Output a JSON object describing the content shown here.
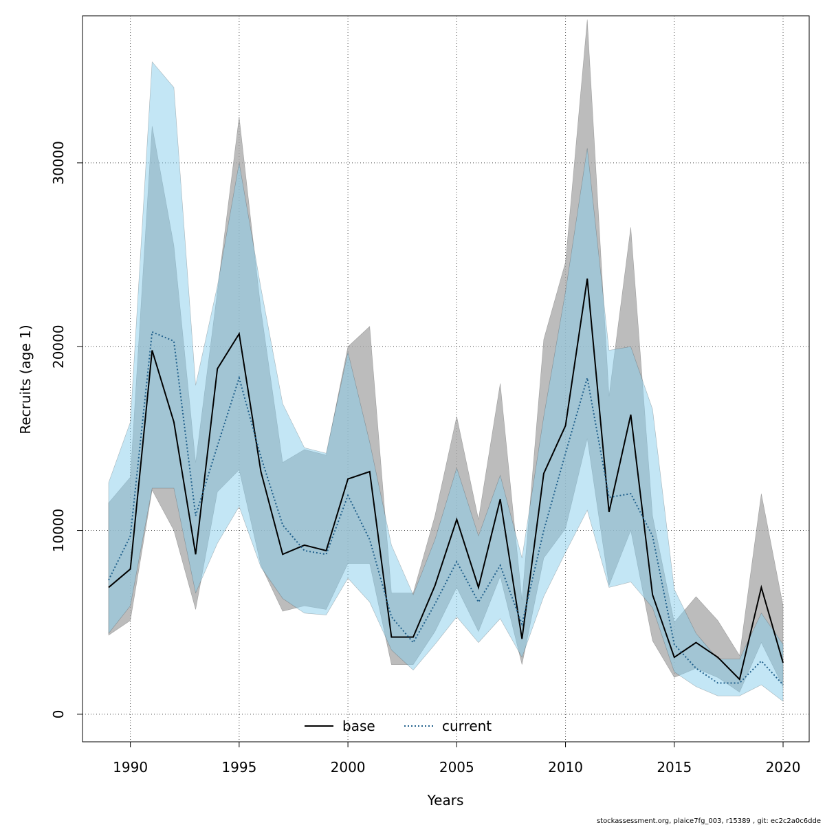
{
  "chart_data": {
    "type": "line",
    "xlabel": "Years",
    "ylabel": "Recruits (age 1)",
    "xlim": [
      1987.8,
      2021.2
    ],
    "ylim": [
      -1500,
      38000
    ],
    "x_ticks": [
      1990,
      1995,
      2000,
      2005,
      2010,
      2015,
      2020
    ],
    "y_ticks": [
      0,
      10000,
      20000,
      30000
    ],
    "grid": true,
    "legend_position": "bottom-center",
    "x": [
      1989,
      1990,
      1991,
      1992,
      1993,
      1994,
      1995,
      1996,
      1997,
      1998,
      1999,
      2000,
      2001,
      2002,
      2003,
      2004,
      2005,
      2006,
      2007,
      2008,
      2009,
      2010,
      2011,
      2012,
      2013,
      2014,
      2015,
      2016,
      2017,
      2018,
      2019,
      2020
    ],
    "series": [
      {
        "name": "base",
        "color": "#000000",
        "band_color": "#a6a6a6",
        "line_style": "solid",
        "values": [
          6900,
          7900,
          19800,
          15900,
          8700,
          18800,
          20700,
          13200,
          8700,
          9200,
          8900,
          12800,
          13200,
          4200,
          4200,
          7000,
          10600,
          6900,
          11700,
          4100,
          13100,
          15700,
          23700,
          11000,
          16300,
          6500,
          3100,
          3900,
          3100,
          1900,
          6900,
          2800
        ],
        "lower": [
          4300,
          5100,
          12200,
          10000,
          5700,
          12100,
          13300,
          8100,
          5600,
          5900,
          5700,
          8200,
          8200,
          2700,
          2700,
          4500,
          6900,
          4500,
          7500,
          2700,
          8500,
          10100,
          15000,
          7000,
          10000,
          4000,
          2000,
          2500,
          2000,
          1200,
          3900,
          1500
        ],
        "upper": [
          11500,
          12900,
          32000,
          25500,
          13700,
          23000,
          32500,
          22000,
          13700,
          14400,
          14100,
          20000,
          21100,
          6600,
          6600,
          10800,
          16200,
          10600,
          18000,
          6200,
          20400,
          24600,
          37800,
          17300,
          26500,
          10800,
          5000,
          6400,
          5100,
          3200,
          12000,
          5900
        ]
      },
      {
        "name": "current",
        "color": "#1f5f8b",
        "band_color": "#87ceeb",
        "line_style": "dotted",
        "values": [
          7300,
          9700,
          20800,
          20300,
          10800,
          14600,
          18300,
          14000,
          10300,
          8900,
          8700,
          11900,
          9500,
          5300,
          3900,
          6000,
          8300,
          6100,
          8100,
          4900,
          10000,
          14200,
          18300,
          11800,
          12000,
          9700,
          3800,
          2500,
          1700,
          1700,
          2900,
          1600
        ],
        "lower": [
          4400,
          5900,
          12300,
          12300,
          6600,
          9300,
          11300,
          8000,
          6300,
          5500,
          5400,
          7400,
          6100,
          3500,
          2400,
          3800,
          5300,
          3900,
          5200,
          3100,
          6400,
          8800,
          11100,
          6900,
          7200,
          5800,
          2300,
          1500,
          1000,
          1000,
          1600,
          700
        ],
        "upper": [
          12600,
          15900,
          35500,
          34100,
          17900,
          23300,
          30000,
          23200,
          16900,
          14500,
          14200,
          19700,
          14800,
          9200,
          6500,
          9500,
          13400,
          9700,
          13000,
          8500,
          16200,
          23000,
          30800,
          19800,
          20000,
          16600,
          6800,
          4400,
          3000,
          3000,
          5500,
          3800
        ]
      }
    ]
  },
  "footer": "stockassessment.org, plaice7fg_003, r15389 , git: ec2c2a0c6dde"
}
